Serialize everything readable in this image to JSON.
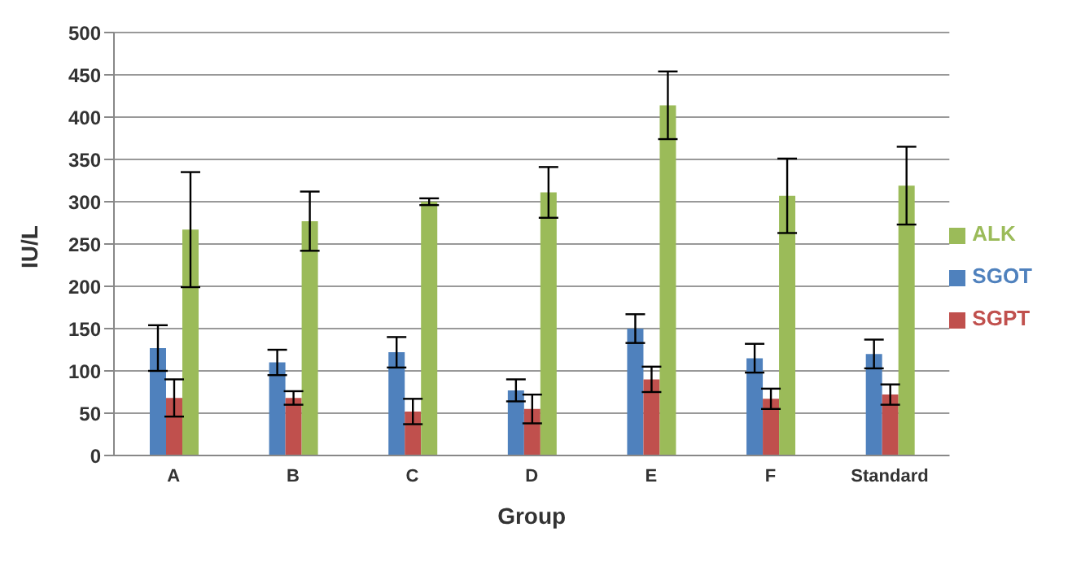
{
  "chart_data": {
    "type": "bar",
    "xlabel": "Group",
    "ylabel": "IU/L",
    "categories": [
      "A",
      "B",
      "C",
      "D",
      "E",
      "F",
      "Standard"
    ],
    "series": [
      {
        "name": "SGOT",
        "color": "#4f81bd",
        "values": [
          127,
          110,
          122,
          77,
          150,
          115,
          120
        ],
        "errors": [
          27,
          15,
          18,
          13,
          17,
          17,
          17
        ]
      },
      {
        "name": "SGPT",
        "color": "#c0504d",
        "values": [
          68,
          68,
          52,
          55,
          90,
          67,
          72
        ],
        "errors": [
          22,
          8,
          15,
          17,
          15,
          12,
          12
        ]
      },
      {
        "name": "ALK",
        "color": "#9bbb59",
        "values": [
          267,
          277,
          300,
          311,
          414,
          307,
          319
        ],
        "errors": [
          68,
          35,
          4,
          30,
          40,
          44,
          46
        ]
      }
    ],
    "ylim": [
      0,
      500
    ],
    "yticks": [
      0,
      50,
      100,
      150,
      200,
      250,
      300,
      350,
      400,
      450,
      500
    ],
    "grid": "y",
    "legend": "right"
  }
}
